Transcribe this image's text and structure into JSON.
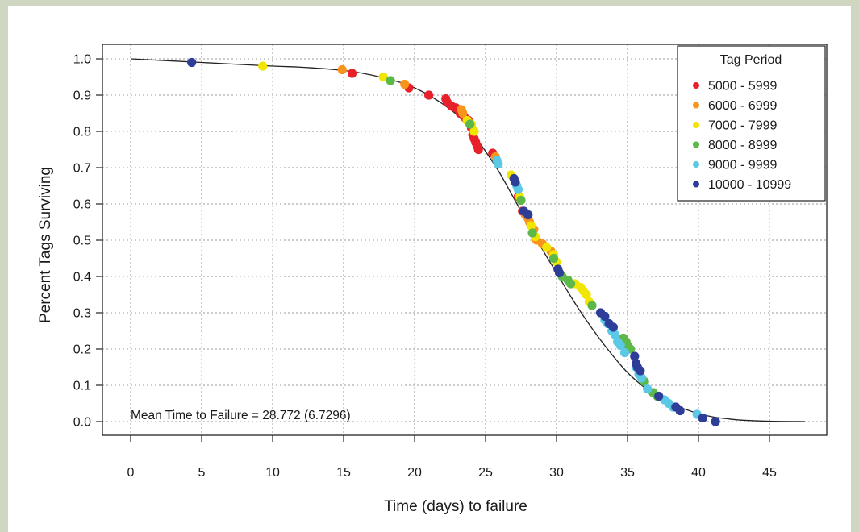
{
  "colors": {
    "5000-5999": "#e8202a",
    "6000-6999": "#f7941d",
    "7000-7999": "#f2e600",
    "8000-8999": "#5cb848",
    "9000-9999": "#5bc8e6",
    "10000-10999": "#2e3e98",
    "curve": "#222222",
    "grid": "#9a9a9a",
    "background": "#cfd6c2"
  },
  "chart_data": {
    "type": "scatter",
    "xlabel": "Time (days) to failure",
    "ylabel": "Percent Tags Surviving",
    "xlim": [
      0,
      47.5
    ],
    "ylim": [
      0,
      1.0
    ],
    "x_ticks": [
      "0",
      "5",
      "10",
      "15",
      "20",
      "25",
      "30",
      "35",
      "40",
      "45"
    ],
    "y_ticks": [
      "0.0",
      "0.1",
      "0.2",
      "0.3",
      "0.4",
      "0.5",
      "0.6",
      "0.7",
      "0.8",
      "0.9",
      "1.0"
    ],
    "grid": true,
    "legend_position": "top-right",
    "legend_title": "Tag Period",
    "annotation": "Mean Time to Failure = 28.772 (6.7296)",
    "curve": {
      "name": "",
      "x": [
        0,
        5,
        10,
        12,
        15,
        17,
        19,
        20,
        21,
        22,
        23,
        24,
        25,
        26,
        27,
        28,
        29,
        30,
        31,
        32,
        33,
        34,
        35,
        36,
        37,
        38,
        39,
        40,
        41,
        42,
        43,
        45,
        47.5
      ],
      "y": [
        1.0,
        0.99,
        0.98,
        0.977,
        0.968,
        0.955,
        0.935,
        0.92,
        0.9,
        0.875,
        0.845,
        0.8,
        0.745,
        0.685,
        0.615,
        0.545,
        0.475,
        0.41,
        0.345,
        0.285,
        0.23,
        0.18,
        0.135,
        0.1,
        0.07,
        0.05,
        0.035,
        0.022,
        0.013,
        0.008,
        0.004,
        0.001,
        0.0
      ]
    },
    "series": [
      {
        "name": "5000 - 5999",
        "color_key": "5000-5999",
        "points": [
          [
            15.6,
            0.96
          ],
          [
            19.6,
            0.92
          ],
          [
            21.0,
            0.9
          ],
          [
            22.2,
            0.89
          ],
          [
            22.3,
            0.88
          ],
          [
            22.6,
            0.87
          ],
          [
            22.9,
            0.865
          ],
          [
            23.1,
            0.86
          ],
          [
            23.2,
            0.85
          ],
          [
            23.5,
            0.84
          ],
          [
            23.8,
            0.83
          ],
          [
            24.0,
            0.81
          ],
          [
            24.1,
            0.79
          ],
          [
            24.2,
            0.78
          ],
          [
            24.3,
            0.77
          ],
          [
            24.4,
            0.76
          ],
          [
            24.5,
            0.75
          ],
          [
            25.5,
            0.74
          ],
          [
            27.3,
            0.62
          ],
          [
            27.6,
            0.58
          ]
        ]
      },
      {
        "name": "6000 - 6999",
        "color_key": "6000-6999",
        "points": [
          [
            14.9,
            0.97
          ],
          [
            19.3,
            0.93
          ],
          [
            23.3,
            0.86
          ],
          [
            23.4,
            0.85
          ],
          [
            25.7,
            0.73
          ],
          [
            27.8,
            0.57
          ],
          [
            28.0,
            0.56
          ],
          [
            28.1,
            0.55
          ],
          [
            28.4,
            0.53
          ],
          [
            28.6,
            0.5
          ],
          [
            29.0,
            0.49
          ],
          [
            29.6,
            0.47
          ]
        ]
      },
      {
        "name": "7000 - 7999",
        "color_key": "7000-7999",
        "points": [
          [
            9.3,
            0.98
          ],
          [
            17.8,
            0.95
          ],
          [
            23.7,
            0.83
          ],
          [
            24.0,
            0.82
          ],
          [
            24.2,
            0.8
          ],
          [
            26.8,
            0.68
          ],
          [
            27.4,
            0.62
          ],
          [
            28.2,
            0.54
          ],
          [
            28.5,
            0.51
          ],
          [
            29.3,
            0.48
          ],
          [
            29.8,
            0.46
          ],
          [
            30.0,
            0.44
          ],
          [
            31.3,
            0.38
          ],
          [
            31.7,
            0.37
          ],
          [
            31.9,
            0.36
          ],
          [
            32.1,
            0.35
          ],
          [
            32.3,
            0.33
          ]
        ]
      },
      {
        "name": "8000 - 8999",
        "color_key": "8000-8999",
        "points": [
          [
            18.3,
            0.94
          ],
          [
            23.9,
            0.82
          ],
          [
            27.5,
            0.61
          ],
          [
            28.3,
            0.52
          ],
          [
            29.8,
            0.45
          ],
          [
            30.4,
            0.4
          ],
          [
            30.8,
            0.39
          ],
          [
            31.0,
            0.38
          ],
          [
            32.5,
            0.32
          ],
          [
            34.7,
            0.23
          ],
          [
            34.9,
            0.22
          ],
          [
            35.0,
            0.21
          ],
          [
            35.2,
            0.2
          ],
          [
            36.0,
            0.12
          ],
          [
            36.2,
            0.11
          ],
          [
            36.8,
            0.08
          ],
          [
            37.1,
            0.07
          ]
        ]
      },
      {
        "name": "9000 - 9999",
        "color_key": "9000-9999",
        "points": [
          [
            25.8,
            0.72
          ],
          [
            25.9,
            0.71
          ],
          [
            27.2,
            0.65
          ],
          [
            27.3,
            0.64
          ],
          [
            33.4,
            0.28
          ],
          [
            33.6,
            0.27
          ],
          [
            33.9,
            0.25
          ],
          [
            34.1,
            0.24
          ],
          [
            34.3,
            0.22
          ],
          [
            34.5,
            0.21
          ],
          [
            34.8,
            0.19
          ],
          [
            35.6,
            0.15
          ],
          [
            35.8,
            0.13
          ],
          [
            36.0,
            0.12
          ],
          [
            36.4,
            0.09
          ],
          [
            37.6,
            0.06
          ],
          [
            37.9,
            0.05
          ],
          [
            38.2,
            0.04
          ],
          [
            39.9,
            0.02
          ]
        ]
      },
      {
        "name": "10000 - 10999",
        "color_key": "10000-10999",
        "points": [
          [
            4.3,
            0.99
          ],
          [
            27.0,
            0.67
          ],
          [
            27.1,
            0.66
          ],
          [
            27.7,
            0.58
          ],
          [
            28.0,
            0.57
          ],
          [
            30.1,
            0.42
          ],
          [
            30.2,
            0.41
          ],
          [
            33.1,
            0.3
          ],
          [
            33.4,
            0.29
          ],
          [
            33.7,
            0.27
          ],
          [
            34.0,
            0.26
          ],
          [
            35.5,
            0.18
          ],
          [
            35.6,
            0.16
          ],
          [
            35.7,
            0.15
          ],
          [
            35.9,
            0.14
          ],
          [
            37.2,
            0.07
          ],
          [
            38.4,
            0.04
          ],
          [
            38.7,
            0.03
          ],
          [
            40.3,
            0.01
          ],
          [
            41.2,
            0.0
          ]
        ]
      }
    ]
  }
}
